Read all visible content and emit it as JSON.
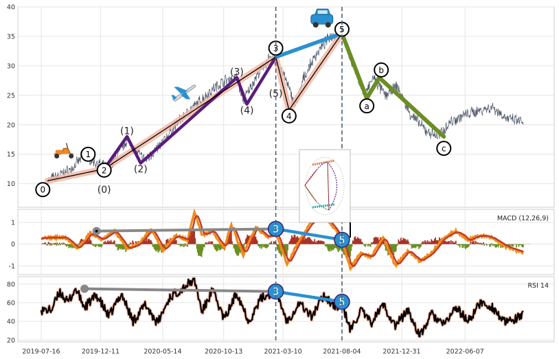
{
  "chart_data": [
    {
      "type": "line",
      "panel": "price",
      "yticks": [
        10,
        15,
        20,
        25,
        30,
        35,
        40
      ],
      "ylim": [
        6,
        40
      ],
      "xlabels": [
        "2019-07-16",
        "2019-12-11",
        "2020-05-14",
        "2020-10-13",
        "2021-03-10",
        "2021-08-04",
        "2021-12-31",
        "2022-06-07"
      ],
      "series_color": "#4b5566",
      "price_path": [
        [
          "2019-08-01",
          10.5
        ],
        [
          "2019-09-01",
          11.5
        ],
        [
          "2019-10-01",
          12.5
        ],
        [
          "2019-11-01",
          15.0
        ],
        [
          "2019-12-01",
          13.5
        ],
        [
          "2020-01-01",
          12.5
        ],
        [
          "2020-02-15",
          17.5
        ],
        [
          "2020-03-15",
          15.0
        ],
        [
          "2020-04-01",
          14.0
        ],
        [
          "2020-05-15",
          17.0
        ],
        [
          "2020-06-15",
          20.0
        ],
        [
          "2020-07-15",
          22.0
        ],
        [
          "2020-08-15",
          24.0
        ],
        [
          "2020-09-15",
          26.0
        ],
        [
          "2020-10-15",
          27.5
        ],
        [
          "2020-11-15",
          28.0
        ],
        [
          "2020-12-01",
          24.0
        ],
        [
          "2021-01-01",
          28.0
        ],
        [
          "2021-02-01",
          31.0
        ],
        [
          "2021-02-20",
          31.0
        ],
        [
          "2021-03-15",
          28.0
        ],
        [
          "2021-04-10",
          23.0
        ],
        [
          "2021-05-01",
          28.0
        ],
        [
          "2021-06-01",
          32.0
        ],
        [
          "2021-07-05",
          35.0
        ],
        [
          "2021-08-04",
          35.5
        ],
        [
          "2021-09-01",
          30.0
        ],
        [
          "2021-10-01",
          25.0
        ],
        [
          "2021-10-20",
          28.0
        ],
        [
          "2021-11-20",
          25.0
        ],
        [
          "2021-12-20",
          26.5
        ],
        [
          "2022-01-20",
          22.0
        ],
        [
          "2022-03-01",
          19.0
        ],
        [
          "2022-04-01",
          18.0
        ],
        [
          "2022-05-01",
          20.5
        ],
        [
          "2022-06-01",
          21.5
        ],
        [
          "2022-07-15",
          22.5
        ],
        [
          "2022-08-15",
          23.0
        ],
        [
          "2022-09-20",
          21.0
        ],
        [
          "2022-10-30",
          20.5
        ]
      ],
      "wave_zigzag_bands": [
        {
          "color": "#f3b8a4",
          "points": [
            [
              "2019-08-01",
              10.5
            ],
            [
              "2019-12-20",
              12.5
            ],
            [
              "2021-02-20",
              31.5
            ],
            [
              "2021-03-25",
              22.5
            ],
            [
              "2021-08-04",
              35.5
            ]
          ]
        }
      ],
      "wave_lines": [
        {
          "color": "#5a1c7c",
          "points": [
            [
              "2019-12-20",
              12.5
            ],
            [
              "2020-02-15",
              18.0
            ],
            [
              "2020-03-20",
              13.5
            ],
            [
              "2020-11-15",
              28.0
            ],
            [
              "2020-12-10",
              23.5
            ],
            [
              "2021-02-20",
              31.5
            ]
          ]
        },
        {
          "color": "#2b90d0",
          "points": [
            [
              "2021-02-20",
              31.5
            ],
            [
              "2021-08-04",
              35.5
            ]
          ]
        },
        {
          "color": "#6b8e23",
          "points": [
            [
              "2021-08-04",
              35.5
            ],
            [
              "2021-10-05",
              24.5
            ],
            [
              "2021-11-05",
              28.0
            ],
            [
              "2022-04-15",
              18.0
            ]
          ]
        },
        {
          "color": "#000000",
          "points": [
            [
              "2019-08-01",
              10.5
            ],
            [
              "2019-12-20",
              12.5
            ],
            [
              "2021-02-20",
              31.5
            ],
            [
              "2021-03-25",
              22.5
            ],
            [
              "2021-08-04",
              35.5
            ]
          ]
        }
      ],
      "vlines": [
        "2021-02-20",
        "2021-08-04"
      ],
      "circle_labels": [
        {
          "text": "0",
          "x": "2019-07-20",
          "y": 9.0
        },
        {
          "text": "1",
          "x": "2019-11-10",
          "y": 15.0
        },
        {
          "text": "2",
          "x": "2019-12-20",
          "y": 12.3
        },
        {
          "text": "3",
          "x": "2021-02-20",
          "y": 33.0
        },
        {
          "text": "4",
          "x": "2021-03-25",
          "y": 21.5
        },
        {
          "text": "5",
          "x": "2021-08-04",
          "y": 36.2
        },
        {
          "text": "a",
          "x": "2021-10-05",
          "y": 23.2
        },
        {
          "text": "b",
          "x": "2021-11-10",
          "y": 29.3
        },
        {
          "text": "c",
          "x": "2022-04-15",
          "y": 16.0
        }
      ],
      "text_labels": [
        {
          "text": "(0)",
          "x": "2019-12-20",
          "y": 9.0
        },
        {
          "text": "(1)",
          "x": "2020-02-15",
          "y": 19.0
        },
        {
          "text": "(2)",
          "x": "2020-03-20",
          "y": 12.5
        },
        {
          "text": "(3)",
          "x": "2020-11-15",
          "y": 29.0
        },
        {
          "text": "(4)",
          "x": "2020-12-10",
          "y": 22.5
        },
        {
          "text": "(5)",
          "x": "2021-02-20",
          "y": 25.3
        }
      ],
      "icons": [
        {
          "name": "scooter-icon",
          "x": "2019-09-10",
          "y": 15.5
        },
        {
          "name": "airplane-icon",
          "x": "2020-07-05",
          "y": 25.5
        },
        {
          "name": "car-icon",
          "x": "2021-06-15",
          "y": 38.0
        }
      ]
    },
    {
      "type": "line",
      "panel": "macd",
      "title": "MACD (12,26,9)",
      "yticks": [
        -1,
        0,
        1
      ],
      "ylim": [
        -1.4,
        1.6
      ],
      "macd": [
        [
          "2019-07-16",
          0.3
        ],
        [
          "2019-09-15",
          0.3
        ],
        [
          "2019-10-15",
          -0.2
        ],
        [
          "2019-11-15",
          0.5
        ],
        [
          "2019-12-15",
          0.2
        ],
        [
          "2020-01-15",
          0.6
        ],
        [
          "2020-02-15",
          -0.2
        ],
        [
          "2020-03-15",
          0.0
        ],
        [
          "2020-04-15",
          0.7
        ],
        [
          "2020-05-15",
          -0.3
        ],
        [
          "2020-06-15",
          0.4
        ],
        [
          "2020-07-15",
          0.2
        ],
        [
          "2020-08-01",
          1.5
        ],
        [
          "2020-08-20",
          0.4
        ],
        [
          "2020-09-15",
          0.6
        ],
        [
          "2020-10-15",
          -0.2
        ],
        [
          "2020-11-01",
          0.9
        ],
        [
          "2020-12-01",
          -0.5
        ],
        [
          "2021-01-01",
          0.8
        ],
        [
          "2021-02-01",
          0.3
        ],
        [
          "2021-02-20",
          0.5
        ],
        [
          "2021-03-20",
          -0.9
        ],
        [
          "2021-04-20",
          0.2
        ],
        [
          "2021-05-20",
          1.0
        ],
        [
          "2021-06-20",
          1.4
        ],
        [
          "2021-07-20",
          0.6
        ],
        [
          "2021-08-04",
          0.2
        ],
        [
          "2021-08-25",
          -1.1
        ],
        [
          "2021-09-20",
          -0.4
        ],
        [
          "2021-10-15",
          -0.6
        ],
        [
          "2021-11-15",
          0.3
        ],
        [
          "2021-12-15",
          -1.0
        ],
        [
          "2022-01-15",
          -0.3
        ],
        [
          "2022-02-15",
          -0.8
        ],
        [
          "2022-03-15",
          -0.4
        ],
        [
          "2022-04-15",
          0.3
        ],
        [
          "2022-05-15",
          0.6
        ],
        [
          "2022-06-15",
          0.2
        ],
        [
          "2022-07-15",
          0.4
        ],
        [
          "2022-08-15",
          0.3
        ],
        [
          "2022-09-15",
          -0.1
        ],
        [
          "2022-10-30",
          -0.4
        ]
      ],
      "colors": {
        "macd": "#f28a17",
        "signal": "#c0392b",
        "hist_pos": "#a93226",
        "hist_neg": "#6b8e23"
      },
      "divergence": {
        "gray": [
          [
            "2019-12-01",
            0.6
          ],
          [
            "2021-02-20",
            0.7
          ]
        ],
        "blue": [
          [
            "2021-02-20",
            0.7
          ],
          [
            "2021-08-04",
            0.2
          ]
        ],
        "labels": [
          {
            "text": "3",
            "x": "2021-02-20",
            "y": 0.7
          },
          {
            "text": "5",
            "x": "2021-08-04",
            "y": 0.2
          }
        ]
      }
    },
    {
      "type": "line",
      "panel": "rsi",
      "title": "RSI 14",
      "yticks": [
        20,
        40,
        60,
        80
      ],
      "ylim": [
        18,
        88
      ],
      "rsi": [
        [
          "2019-07-16",
          52
        ],
        [
          "2019-08-10",
          52
        ],
        [
          "2019-09-01",
          72
        ],
        [
          "2019-09-20",
          60
        ],
        [
          "2019-10-10",
          75
        ],
        [
          "2019-11-01",
          55
        ],
        [
          "2019-12-01",
          68
        ],
        [
          "2020-01-01",
          45
        ],
        [
          "2020-02-01",
          70
        ],
        [
          "2020-03-01",
          40
        ],
        [
          "2020-04-01",
          58
        ],
        [
          "2020-05-01",
          38
        ],
        [
          "2020-06-01",
          66
        ],
        [
          "2020-07-01",
          75
        ],
        [
          "2020-08-01",
          85
        ],
        [
          "2020-08-20",
          50
        ],
        [
          "2020-09-15",
          73
        ],
        [
          "2020-10-15",
          42
        ],
        [
          "2020-11-15",
          71
        ],
        [
          "2020-12-15",
          40
        ],
        [
          "2021-01-15",
          65
        ],
        [
          "2021-02-20",
          73
        ],
        [
          "2021-03-20",
          40
        ],
        [
          "2021-04-20",
          60
        ],
        [
          "2021-05-20",
          45
        ],
        [
          "2021-06-20",
          68
        ],
        [
          "2021-07-20",
          55
        ],
        [
          "2021-08-04",
          60
        ],
        [
          "2021-08-25",
          30
        ],
        [
          "2021-09-20",
          52
        ],
        [
          "2021-10-15",
          38
        ],
        [
          "2021-11-15",
          58
        ],
        [
          "2021-12-15",
          35
        ],
        [
          "2022-01-15",
          52
        ],
        [
          "2022-02-15",
          24
        ],
        [
          "2022-03-15",
          48
        ],
        [
          "2022-04-15",
          36
        ],
        [
          "2022-05-15",
          55
        ],
        [
          "2022-06-15",
          40
        ],
        [
          "2022-07-15",
          60
        ],
        [
          "2022-08-15",
          55
        ],
        [
          "2022-09-15",
          38
        ],
        [
          "2022-10-30",
          46
        ]
      ],
      "colors": {
        "line": "#000000",
        "edge": "#f3b8a4"
      },
      "divergence": {
        "gray": [
          [
            "2019-11-01",
            75
          ],
          [
            "2021-02-20",
            72
          ]
        ],
        "blue": [
          [
            "2021-02-20",
            72
          ],
          [
            "2021-08-04",
            61
          ]
        ],
        "labels": [
          {
            "text": "3",
            "x": "2021-02-20",
            "y": 72
          },
          {
            "text": "5",
            "x": "2021-08-04",
            "y": 61
          }
        ]
      }
    }
  ]
}
